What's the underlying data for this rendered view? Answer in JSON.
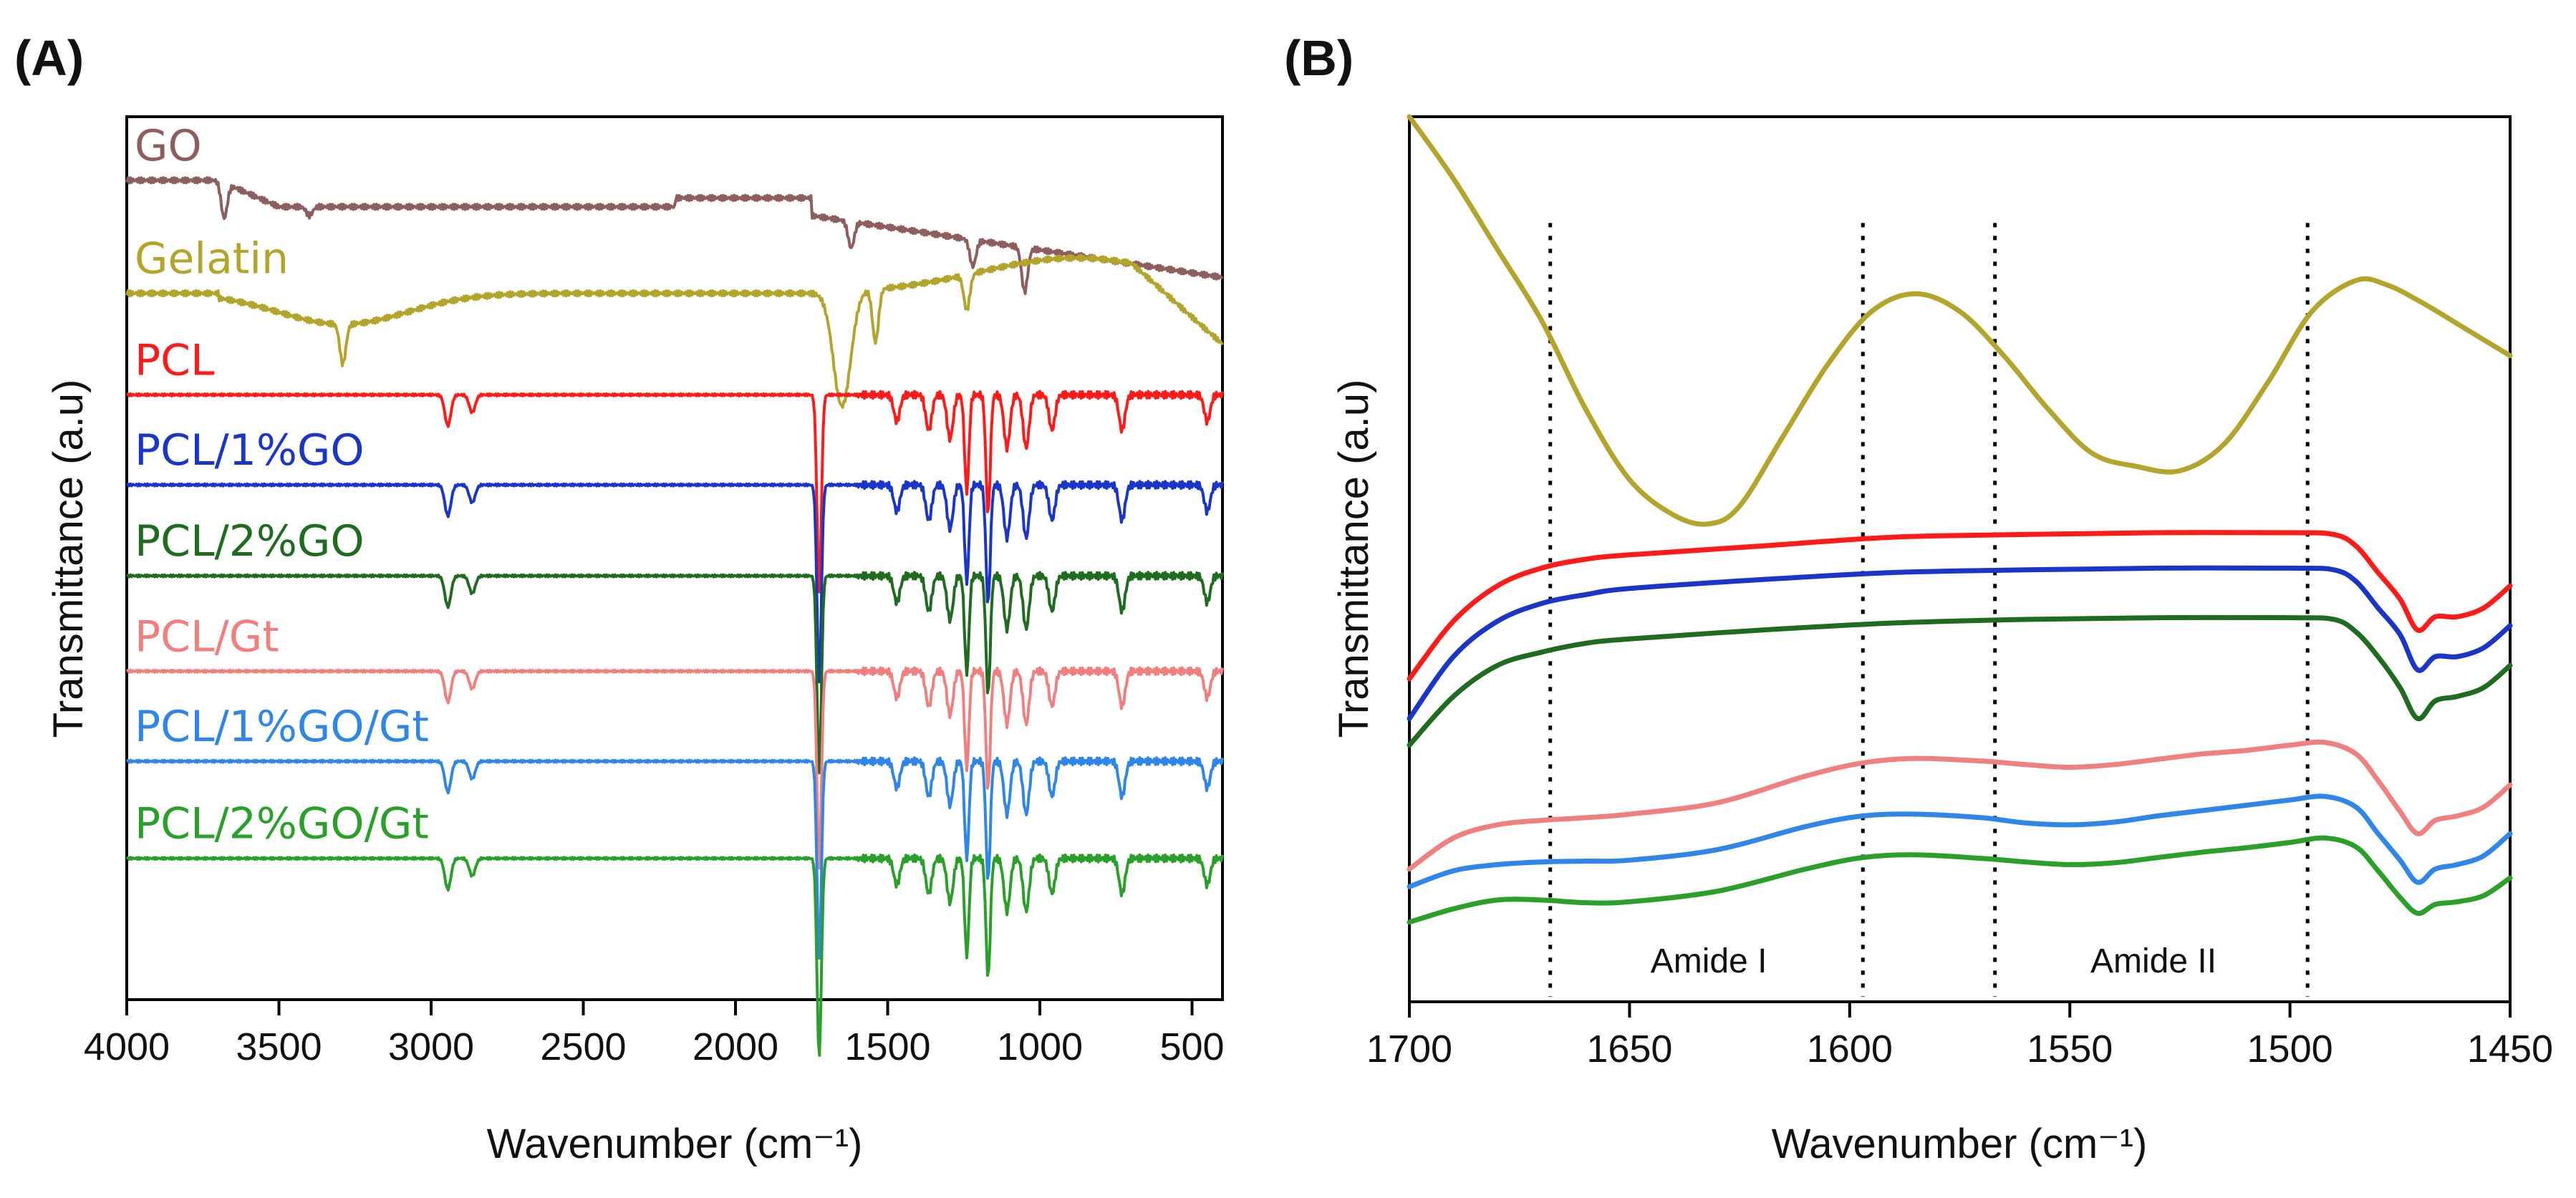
{
  "chart_data": [
    {
      "panel_label": "(A)",
      "type": "line",
      "xlabel": "Wavenumber (cm⁻¹)",
      "ylabel": "Transmittance (a.u)",
      "xlim": [
        4000,
        400
      ],
      "ylim": [
        0,
        1
      ],
      "xticks": [
        "4000",
        "3500",
        "3000",
        "2500",
        "2000",
        "1500",
        "1000",
        "500"
      ],
      "xtick_values": [
        4000,
        3500,
        3000,
        2500,
        2000,
        1500,
        1000,
        500
      ],
      "grid": false,
      "legend": "inline labels above each trace",
      "series": [
        {
          "name": "GO",
          "color": "#8e5d5d",
          "offset": 0.928
        },
        {
          "name": "Gelatin",
          "color": "#b3a52c",
          "offset": 0.8
        },
        {
          "name": "PCL",
          "color": "#ff1a1a",
          "offset": 0.685
        },
        {
          "name": "PCL/1%GO",
          "color": "#1a35c9",
          "offset": 0.583
        },
        {
          "name": "PCL/2%GO",
          "color": "#1f6b1f",
          "offset": 0.48
        },
        {
          "name": "PCL/Gt",
          "color": "#f08080",
          "offset": 0.372
        },
        {
          "name": "PCL/1%GO/Gt",
          "color": "#2f86e8",
          "offset": 0.27
        },
        {
          "name": "PCL/2%GO/Gt",
          "color": "#2aa02a",
          "offset": 0.16
        }
      ],
      "features": {
        "GO": [
          {
            "x": 3680,
            "d": -0.04
          },
          {
            "x": 3400,
            "d": -0.01
          },
          {
            "x": 1620,
            "d": -0.03
          },
          {
            "x": 1220,
            "d": -0.03
          },
          {
            "x": 1050,
            "d": -0.05
          }
        ],
        "Gelatin": [
          {
            "x": 3290,
            "d": -0.045
          },
          {
            "x": 1650,
            "d": -0.13
          },
          {
            "x": 1540,
            "d": -0.06
          },
          {
            "x": 1240,
            "d": -0.04
          }
        ],
        "PCL": [
          {
            "x": 2945,
            "d": -0.035
          },
          {
            "x": 2865,
            "d": -0.02
          },
          {
            "x": 1725,
            "d": -0.225
          },
          {
            "x": 1470,
            "d": -0.03
          },
          {
            "x": 1365,
            "d": -0.04
          },
          {
            "x": 1295,
            "d": -0.05
          },
          {
            "x": 1240,
            "d": -0.11
          },
          {
            "x": 1170,
            "d": -0.135
          },
          {
            "x": 1108,
            "d": -0.06
          },
          {
            "x": 1045,
            "d": -0.06
          },
          {
            "x": 960,
            "d": -0.04
          },
          {
            "x": 730,
            "d": -0.04
          },
          {
            "x": 450,
            "d": -0.03
          }
        ]
      }
    },
    {
      "panel_label": "(B)",
      "type": "line",
      "xlabel": "Wavenumber (cm⁻¹)",
      "ylabel": "Transmittance (a.u)",
      "xlim": [
        1700,
        1450
      ],
      "ylim": [
        0,
        1
      ],
      "xticks": [
        "1700",
        "1650",
        "1600",
        "1550",
        "1500",
        "1450"
      ],
      "xtick_values": [
        1700,
        1650,
        1600,
        1550,
        1500,
        1450
      ],
      "grid": false,
      "reference_lines": [
        1668,
        1597,
        1567,
        1496
      ],
      "regions": [
        {
          "label": "Amide I",
          "x": 1632
        },
        {
          "label": "Amide II",
          "x": 1531
        }
      ],
      "series": [
        {
          "name": "Gelatin",
          "color": "#b3a52c",
          "x": [
            1700,
            1690,
            1680,
            1670,
            1660,
            1650,
            1640,
            1632,
            1625,
            1615,
            1605,
            1595,
            1585,
            1575,
            1565,
            1555,
            1545,
            1535,
            1525,
            1515,
            1505,
            1495,
            1485,
            1478,
            1470,
            1460,
            1450
          ],
          "y": [
            1.0,
            0.93,
            0.85,
            0.77,
            0.67,
            0.59,
            0.55,
            0.54,
            0.56,
            0.64,
            0.72,
            0.78,
            0.8,
            0.78,
            0.73,
            0.67,
            0.62,
            0.605,
            0.6,
            0.63,
            0.7,
            0.78,
            0.815,
            0.81,
            0.79,
            0.76,
            0.73
          ]
        },
        {
          "name": "PCL",
          "color": "#ff1a1a",
          "x": [
            1700,
            1690,
            1680,
            1670,
            1660,
            1650,
            1620,
            1590,
            1560,
            1530,
            1500,
            1490,
            1485,
            1480,
            1475,
            1471,
            1467,
            1462,
            1456,
            1450
          ],
          "y": [
            0.365,
            0.43,
            0.47,
            0.49,
            0.5,
            0.505,
            0.515,
            0.525,
            0.528,
            0.53,
            0.53,
            0.528,
            0.515,
            0.485,
            0.455,
            0.42,
            0.435,
            0.435,
            0.445,
            0.47
          ]
        },
        {
          "name": "PCL/1%GO",
          "color": "#1a35c9",
          "x": [
            1700,
            1690,
            1680,
            1670,
            1660,
            1650,
            1620,
            1590,
            1560,
            1530,
            1500,
            1490,
            1485,
            1480,
            1475,
            1471,
            1467,
            1462,
            1456,
            1450
          ],
          "y": [
            0.32,
            0.39,
            0.43,
            0.45,
            0.46,
            0.467,
            0.477,
            0.485,
            0.488,
            0.49,
            0.49,
            0.488,
            0.475,
            0.445,
            0.415,
            0.375,
            0.39,
            0.39,
            0.4,
            0.425
          ]
        },
        {
          "name": "PCL/2%GO",
          "color": "#1f6b1f",
          "x": [
            1700,
            1690,
            1680,
            1670,
            1660,
            1650,
            1620,
            1590,
            1560,
            1530,
            1500,
            1490,
            1485,
            1480,
            1475,
            1471,
            1467,
            1462,
            1456,
            1450
          ],
          "y": [
            0.29,
            0.345,
            0.38,
            0.395,
            0.405,
            0.41,
            0.42,
            0.428,
            0.432,
            0.434,
            0.434,
            0.432,
            0.418,
            0.39,
            0.355,
            0.32,
            0.34,
            0.345,
            0.355,
            0.38
          ]
        },
        {
          "name": "PCL/Gt",
          "color": "#f08080",
          "x": [
            1700,
            1690,
            1680,
            1670,
            1660,
            1650,
            1630,
            1610,
            1597,
            1585,
            1570,
            1560,
            1550,
            1540,
            1530,
            1520,
            1510,
            1500,
            1492,
            1485,
            1480,
            1475,
            1471,
            1467,
            1462,
            1456,
            1450
          ],
          "y": [
            0.15,
            0.185,
            0.2,
            0.205,
            0.208,
            0.212,
            0.225,
            0.255,
            0.27,
            0.275,
            0.272,
            0.268,
            0.265,
            0.268,
            0.274,
            0.28,
            0.284,
            0.29,
            0.293,
            0.28,
            0.25,
            0.215,
            0.19,
            0.205,
            0.21,
            0.22,
            0.245
          ]
        },
        {
          "name": "PCL/1%GO/Gt",
          "color": "#2f86e8",
          "x": [
            1700,
            1690,
            1680,
            1670,
            1660,
            1650,
            1630,
            1610,
            1597,
            1585,
            1570,
            1560,
            1550,
            1540,
            1530,
            1520,
            1510,
            1500,
            1492,
            1485,
            1480,
            1475,
            1471,
            1467,
            1462,
            1456,
            1450
          ],
          "y": [
            0.13,
            0.148,
            0.155,
            0.158,
            0.159,
            0.16,
            0.172,
            0.198,
            0.21,
            0.212,
            0.208,
            0.202,
            0.2,
            0.203,
            0.21,
            0.216,
            0.222,
            0.228,
            0.232,
            0.22,
            0.19,
            0.16,
            0.135,
            0.15,
            0.155,
            0.165,
            0.19
          ]
        },
        {
          "name": "PCL/2%GO/Gt",
          "color": "#2aa02a",
          "x": [
            1700,
            1690,
            1680,
            1670,
            1660,
            1650,
            1630,
            1610,
            1597,
            1585,
            1570,
            1560,
            1550,
            1540,
            1530,
            1520,
            1510,
            1500,
            1492,
            1485,
            1480,
            1475,
            1471,
            1467,
            1462,
            1456,
            1450
          ],
          "y": [
            0.09,
            0.105,
            0.115,
            0.115,
            0.112,
            0.113,
            0.125,
            0.15,
            0.163,
            0.166,
            0.162,
            0.158,
            0.155,
            0.157,
            0.163,
            0.169,
            0.174,
            0.18,
            0.185,
            0.175,
            0.148,
            0.118,
            0.1,
            0.11,
            0.113,
            0.12,
            0.14
          ]
        }
      ]
    }
  ]
}
